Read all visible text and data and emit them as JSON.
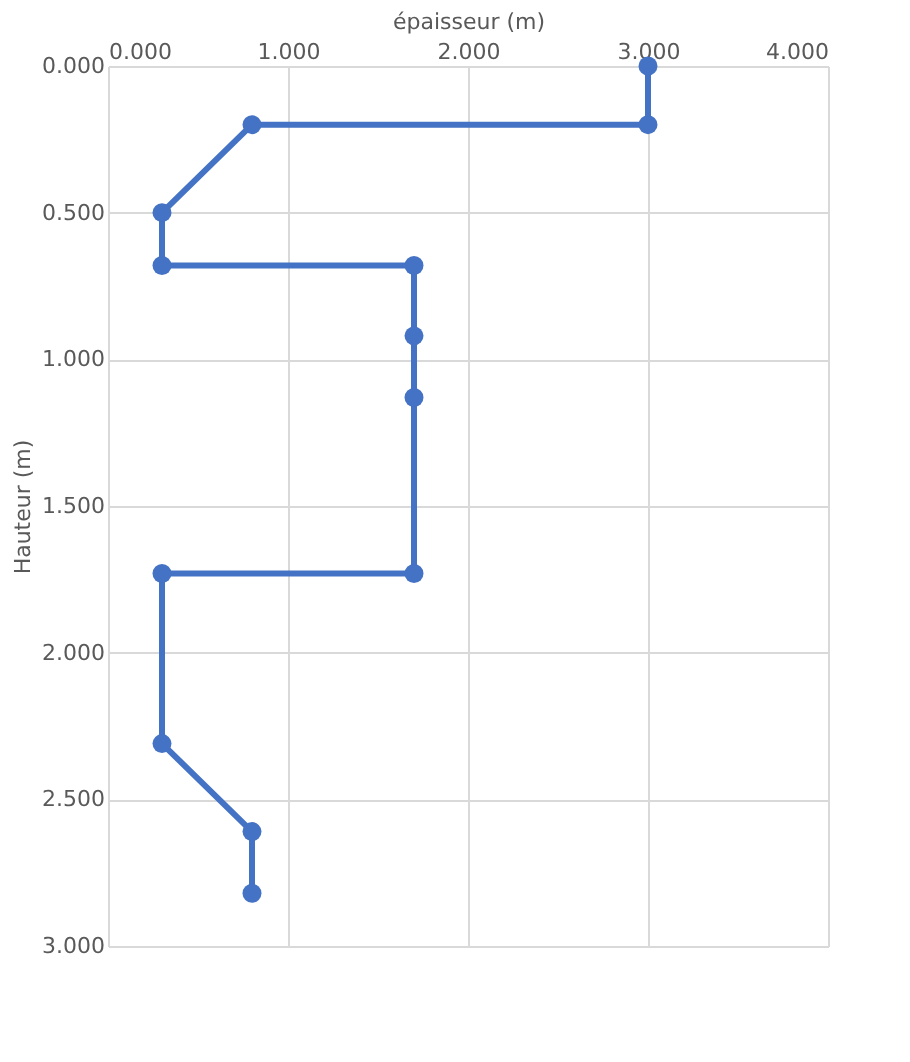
{
  "chart_data": {
    "type": "line",
    "xlabel": "épaisseur (m)",
    "ylabel": "Hauteur (m)",
    "x": [
      3.0,
      3.0,
      0.8,
      0.3,
      0.3,
      1.7,
      1.7,
      1.7,
      1.7,
      0.3,
      0.3,
      0.8,
      0.8
    ],
    "series": [
      {
        "color": "#4472c4",
        "values": [
          0,
          0.2,
          0.2,
          0.5,
          0.68,
          0.68,
          0.92,
          1.13,
          1.73,
          1.73,
          2.31,
          2.61,
          2.82
        ]
      }
    ],
    "xlim": [
      0,
      4
    ],
    "xticks": [
      {
        "value": 0,
        "label": "0.000"
      },
      {
        "value": 1,
        "label": "1.000"
      },
      {
        "value": 2,
        "label": "2.000"
      },
      {
        "value": 3,
        "label": "3.000"
      },
      {
        "value": 4,
        "label": "4.000"
      }
    ],
    "ylim": [
      3,
      0
    ],
    "yticks": [
      {
        "value": 0,
        "label": "0.000"
      },
      {
        "value": 0.5,
        "label": "0.500"
      },
      {
        "value": 1,
        "label": "1.000"
      },
      {
        "value": 1.5,
        "label": "1.500"
      },
      {
        "value": 2,
        "label": "2.000"
      },
      {
        "value": 2.5,
        "label": "2.500"
      },
      {
        "value": 3,
        "label": "3.000"
      }
    ],
    "grid": true,
    "marker": "circle",
    "line_style": "solid"
  }
}
